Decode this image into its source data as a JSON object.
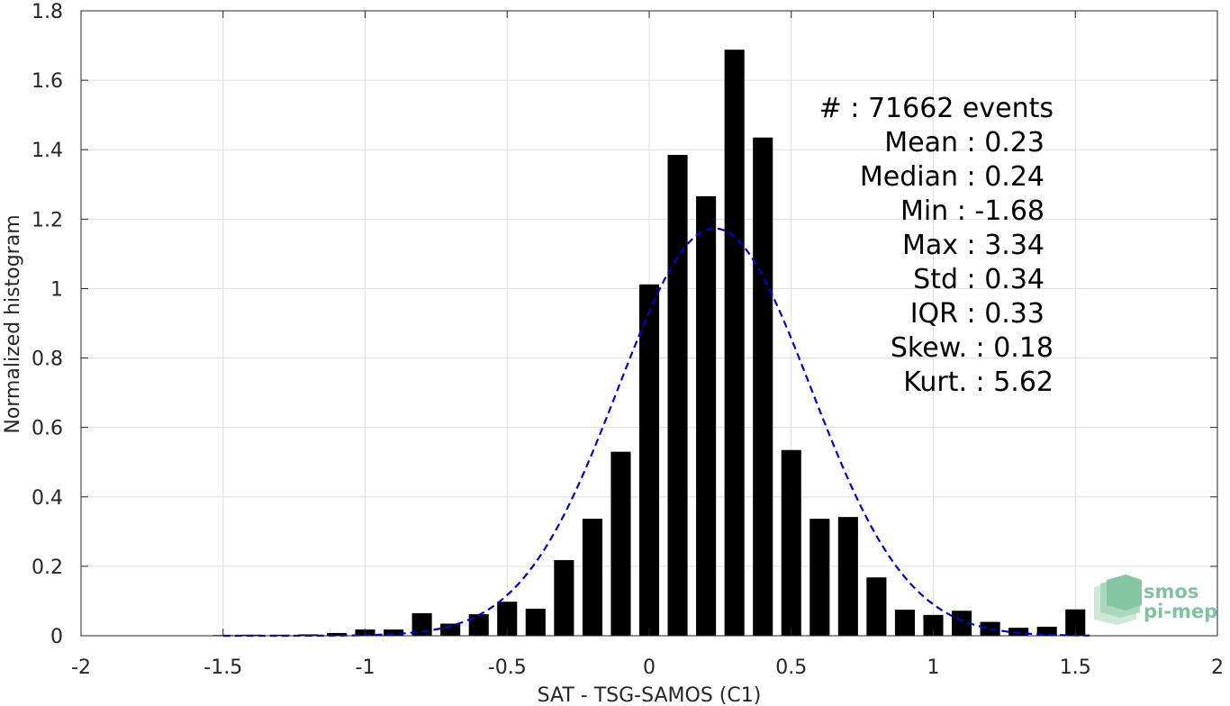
{
  "chart_data": {
    "type": "bar",
    "title": "",
    "xlabel": "SAT - TSG-SAMOS (C1)",
    "ylabel": "Normalized histogram",
    "xlim": [
      -2,
      2
    ],
    "ylim": [
      0,
      1.8
    ],
    "xticks": [
      "-2",
      "-1.5",
      "-1",
      "-0.5",
      "0",
      "0.5",
      "1",
      "1.5",
      "2"
    ],
    "yticks": [
      "0",
      "0.2",
      "0.4",
      "0.6",
      "0.8",
      "1",
      "1.2",
      "1.4",
      "1.6",
      "1.8"
    ],
    "grid": true,
    "bar_width": 0.07,
    "bar_color": "#000000",
    "bins": [
      -1.5,
      -1.4,
      -1.3,
      -1.2,
      -1.1,
      -1.0,
      -0.9,
      -0.8,
      -0.7,
      -0.6,
      -0.5,
      -0.4,
      -0.3,
      -0.2,
      -0.1,
      0.0,
      0.1,
      0.2,
      0.3,
      0.4,
      0.5,
      0.6,
      0.7,
      0.8,
      0.9,
      1.0,
      1.1,
      1.2,
      1.3,
      1.4,
      1.5
    ],
    "values": [
      0.002,
      0.003,
      0.003,
      0.004,
      0.008,
      0.018,
      0.018,
      0.065,
      0.035,
      0.062,
      0.098,
      0.078,
      0.218,
      0.337,
      0.53,
      1.012,
      1.385,
      1.266,
      1.688,
      1.435,
      0.535,
      0.337,
      0.342,
      0.168,
      0.075,
      0.06,
      0.072,
      0.04,
      0.023,
      0.026,
      0.076
    ],
    "fit_curve": {
      "style": "dashed",
      "color": "#0000dd",
      "mean": 0.23,
      "std": 0.34,
      "x_range": [
        -1.5,
        1.55
      ]
    }
  },
  "stats": {
    "events": "#  : 71662 events",
    "mean": "Mean : 0.23",
    "median": "Median : 0.24",
    "min": "Min : -1.68",
    "max": "Max : 3.34",
    "std": "Std : 0.34",
    "iqr": "IQR : 0.33",
    "skew": "Skew. : 0.18",
    "kurt": "Kurt. : 5.62"
  },
  "logo": {
    "line1": "smos",
    "line2": "pi-mep"
  }
}
